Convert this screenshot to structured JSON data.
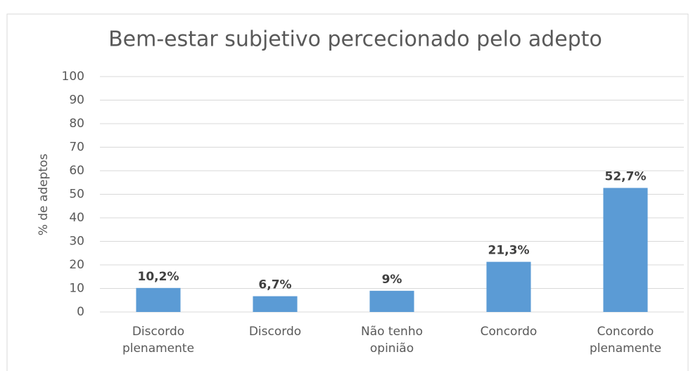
{
  "chart_data": {
    "type": "bar",
    "title": "Bem-estar subjetivo percecionado pelo adepto",
    "ylabel": "% de adeptos",
    "categories": [
      "Discordo plenamente",
      "Discordo",
      "Não tenho opinião",
      "Concordo",
      "Concordo plenamente"
    ],
    "values": [
      10.2,
      6.7,
      9,
      21.3,
      52.7
    ],
    "value_labels": [
      "10,2%",
      "6,7%",
      "9%",
      "21,3%",
      "52,7%"
    ],
    "color": "#5b9bd5",
    "ylim": [
      0,
      100
    ],
    "yticks": [
      0,
      10,
      20,
      30,
      40,
      50,
      60,
      70,
      80,
      90,
      100
    ],
    "grid": true
  }
}
